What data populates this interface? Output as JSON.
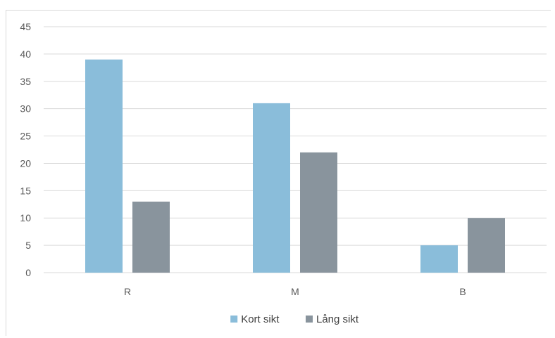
{
  "chart_data": {
    "type": "bar",
    "title": "",
    "xlabel": "",
    "ylabel": "",
    "categories": [
      "R",
      "M",
      "B"
    ],
    "series": [
      {
        "name": "Kort sikt",
        "values": [
          39,
          31,
          5
        ],
        "color": "#8abdda"
      },
      {
        "name": "Lång sikt",
        "values": [
          13,
          22,
          10
        ],
        "color": "#89949d"
      }
    ],
    "ylim": [
      0,
      45
    ],
    "yticks": [
      0,
      5,
      10,
      15,
      20,
      25,
      30,
      35,
      40,
      45
    ],
    "grid": true,
    "legend_position": "bottom",
    "gridline_color": "#d9d9d9"
  }
}
